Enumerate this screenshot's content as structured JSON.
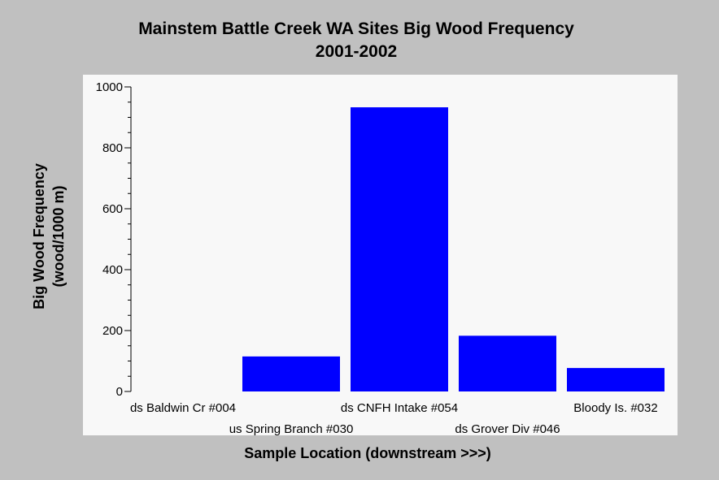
{
  "chart_data": {
    "type": "bar",
    "title": [
      "Mainstem Battle Creek WA Sites Big Wood Frequency",
      "2001-2002"
    ],
    "ylabel": [
      "Big Wood Frequency",
      "(wood/1000 m)"
    ],
    "xlabel": "Sample Location (downstream >>>)",
    "categories": [
      "ds Baldwin Cr #004",
      "us Spring Branch #030",
      "ds CNFH Intake #054",
      "ds Grover Div #046",
      "Bloody Is. #032"
    ],
    "values": [
      0,
      115,
      933,
      183,
      77
    ],
    "ylim": [
      0,
      1000
    ],
    "yticks": [
      0,
      200,
      400,
      600,
      800,
      1000
    ],
    "bar_color": "#0000ff",
    "grid": false,
    "legend": "none"
  }
}
